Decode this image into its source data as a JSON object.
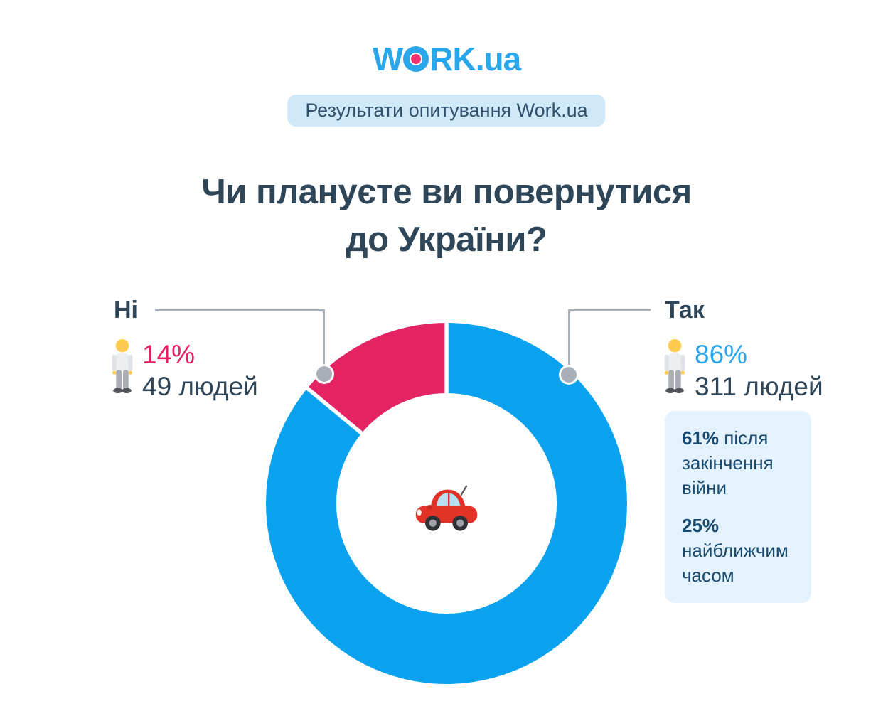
{
  "header": {
    "logo": {
      "left": "W",
      "right": "RK",
      "suffix": ".ua",
      "color": "#29A7EA",
      "dot_color": "#F0336F"
    },
    "badge": {
      "label": "Результати опитування Work.ua",
      "bg": "#CFE9F9",
      "text_color": "#31506B"
    }
  },
  "title": {
    "line1": "Чи плануєте ви повернутися",
    "line2": "до України?",
    "color": "#2E4658"
  },
  "chart_data": {
    "type": "pie",
    "donut": true,
    "title": "Чи плануєте ви повернутися до України?",
    "categories": [
      "Так",
      "Ні"
    ],
    "values": [
      86,
      14
    ],
    "counts": [
      311,
      49
    ],
    "colors": [
      "#0AA2EF",
      "#E42363"
    ],
    "separator_color": "#FFFFFF",
    "center_icon": "car-icon",
    "legend_position": "sides",
    "callout_line_color": "#A9AFB8"
  },
  "labels": {
    "no": {
      "name": "Ні",
      "percent": "14%",
      "count": "49 людей",
      "percent_color": "#EC1A62"
    },
    "yes": {
      "name": "Так",
      "percent": "86%",
      "count": "311 людей",
      "percent_color": "#2BA6EC"
    }
  },
  "info_box": {
    "bg": "#E3F2FC",
    "text_color": "#174A6E",
    "items": [
      {
        "percent": "61%",
        "rest": " після закінчення війни"
      },
      {
        "percent": "25%",
        "rest": " найближчим часом"
      }
    ]
  }
}
